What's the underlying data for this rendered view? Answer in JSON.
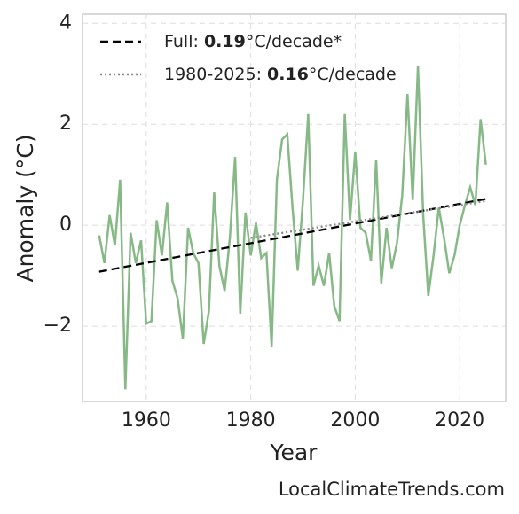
{
  "chart_data": {
    "type": "line",
    "xlabel": "Year",
    "ylabel": "Anomaly (°C)",
    "watermark": "LocalClimateTrends.com",
    "x": [
      1951,
      1952,
      1953,
      1954,
      1955,
      1956,
      1957,
      1958,
      1959,
      1960,
      1961,
      1962,
      1963,
      1964,
      1965,
      1966,
      1967,
      1968,
      1969,
      1970,
      1971,
      1972,
      1973,
      1974,
      1975,
      1976,
      1977,
      1978,
      1979,
      1980,
      1981,
      1982,
      1983,
      1984,
      1985,
      1986,
      1987,
      1988,
      1989,
      1990,
      1991,
      1992,
      1993,
      1994,
      1995,
      1996,
      1997,
      1998,
      1999,
      2000,
      2001,
      2002,
      2003,
      2004,
      2005,
      2006,
      2007,
      2008,
      2009,
      2010,
      2011,
      2012,
      2013,
      2014,
      2015,
      2016,
      2017,
      2018,
      2019,
      2020,
      2021,
      2022,
      2023,
      2024,
      2025
    ],
    "series": [
      {
        "color": "#86b986",
        "linestyle": "solid",
        "values": [
          -0.2,
          -0.75,
          0.2,
          -0.4,
          0.9,
          -3.25,
          -0.15,
          -0.75,
          -0.3,
          -1.95,
          -1.9,
          0.1,
          -0.6,
          0.45,
          -1.1,
          -1.45,
          -2.25,
          -0.05,
          -0.55,
          -0.75,
          -2.35,
          -1.7,
          0.65,
          -0.8,
          -1.3,
          -0.25,
          1.35,
          -1.75,
          0.25,
          -0.6,
          0.05,
          -0.65,
          -0.55,
          -2.4,
          0.9,
          1.7,
          1.8,
          0.35,
          -0.9,
          0.5,
          2.2,
          -1.2,
          -0.8,
          -1.2,
          -0.55,
          -1.6,
          -1.9,
          2.2,
          0.1,
          1.45,
          -0.05,
          -0.15,
          -0.7,
          1.3,
          -1.15,
          -0.05,
          -0.85,
          -0.35,
          0.6,
          2.6,
          0.5,
          3.15,
          0.2,
          -1.4,
          -0.6,
          0.35,
          -0.25,
          -0.95,
          -0.6,
          0.0,
          0.4,
          0.75,
          0.4,
          2.1,
          1.2
        ]
      },
      {
        "name": "Full: 0.19°C/decade*",
        "color": "#000000",
        "linestyle": "dashed",
        "x": [
          1951,
          2025
        ],
        "values": [
          -0.92,
          0.52
        ]
      },
      {
        "name": "1980-2025: 0.16°C/decade",
        "color": "#888888",
        "linestyle": "dotted",
        "x": [
          1980,
          2025
        ],
        "values": [
          -0.25,
          0.48
        ]
      }
    ],
    "xlim": [
      1947.8,
      2028.8
    ],
    "ylim": [
      -3.49,
      4.18
    ],
    "xticks": [
      1960,
      1980,
      2000,
      2020
    ],
    "yticks": [
      {
        "value": -2,
        "label": "−2"
      },
      0,
      2,
      4
    ],
    "grid": true,
    "legend": "upper left"
  }
}
